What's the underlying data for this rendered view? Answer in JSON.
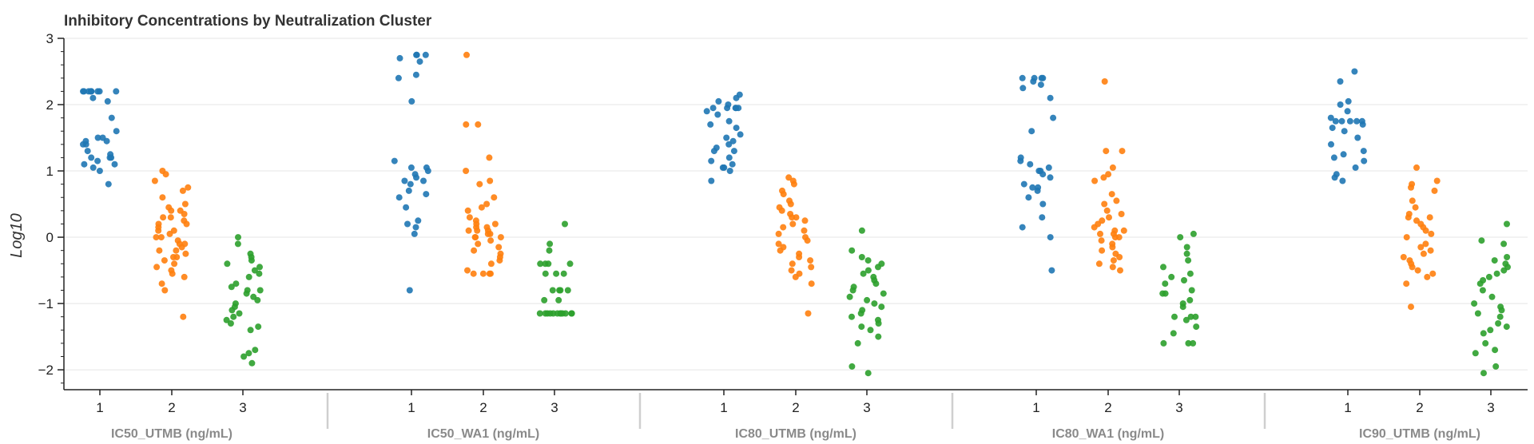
{
  "chart_data": {
    "type": "scatter",
    "title": "Inhibitory Concentrations by Neutralization Cluster",
    "xlabel": "",
    "ylabel": "Log10",
    "ylim": [
      -2.3,
      3.0
    ],
    "yticks": [
      3,
      2,
      1,
      0,
      -1,
      -2
    ],
    "ytick_labels": [
      "3",
      "2",
      "1",
      "0",
      "−1",
      "−2"
    ],
    "categories": [
      "1",
      "2",
      "3"
    ],
    "groups": [
      "IC50_UTMB (ng/mL)",
      "IC50_WA1 (ng/mL)",
      "IC80_UTMB (ng/mL)",
      "IC80_WA1 (ng/mL)",
      "IC90_UTMB (ng/mL)"
    ],
    "grid": "horizontal",
    "colors": {
      "1": "#1f77b4",
      "2": "#ff7f0e",
      "3": "#2ca02c"
    },
    "series": [
      {
        "group": "IC50_UTMB (ng/mL)",
        "clusters": [
          {
            "cluster": "1",
            "values": [
              2.2,
              2.2,
              2.2,
              2.2,
              2.2,
              2.2,
              2.2,
              2.2,
              2.2,
              2.1,
              2.05,
              1.8,
              1.6,
              1.5,
              1.5,
              1.45,
              1.45,
              1.4,
              1.4,
              1.3,
              1.25,
              1.2,
              1.2,
              1.2,
              1.15,
              1.1,
              1.1,
              1.05,
              1.0,
              0.8
            ]
          },
          {
            "cluster": "2",
            "values": [
              1.0,
              0.95,
              0.85,
              0.75,
              0.7,
              0.6,
              0.5,
              0.45,
              0.4,
              0.4,
              0.35,
              0.3,
              0.3,
              0.25,
              0.2,
              0.2,
              0.15,
              0.1,
              0.1,
              0.05,
              0.0,
              0.0,
              -0.05,
              -0.1,
              -0.1,
              -0.15,
              -0.2,
              -0.2,
              -0.25,
              -0.3,
              -0.3,
              -0.35,
              -0.4,
              -0.45,
              -0.5,
              -0.55,
              -0.6,
              -0.7,
              -0.8,
              -1.2
            ]
          },
          {
            "cluster": "3",
            "values": [
              0.0,
              -0.1,
              -0.25,
              -0.3,
              -0.35,
              -0.4,
              -0.45,
              -0.5,
              -0.55,
              -0.6,
              -0.7,
              -0.75,
              -0.8,
              -0.8,
              -0.85,
              -0.9,
              -0.95,
              -1.0,
              -1.05,
              -1.1,
              -1.15,
              -1.2,
              -1.25,
              -1.3,
              -1.35,
              -1.4,
              -1.7,
              -1.75,
              -1.8,
              -1.9
            ]
          }
        ]
      },
      {
        "group": "IC50_WA1 (ng/mL)",
        "clusters": [
          {
            "cluster": "1",
            "values": [
              2.75,
              2.75,
              2.75,
              2.7,
              2.65,
              2.45,
              2.4,
              2.05,
              1.15,
              1.05,
              1.05,
              1.0,
              0.95,
              0.9,
              0.85,
              0.85,
              0.8,
              0.7,
              0.65,
              0.6,
              0.45,
              0.25,
              0.2,
              0.15,
              0.05,
              -0.8
            ]
          },
          {
            "cluster": "2",
            "values": [
              2.75,
              1.7,
              1.7,
              1.2,
              1.0,
              0.85,
              0.8,
              0.6,
              0.5,
              0.45,
              0.4,
              0.3,
              0.25,
              0.2,
              0.2,
              0.15,
              0.15,
              0.1,
              0.1,
              0.1,
              0.05,
              0.05,
              0.0,
              0.0,
              0.0,
              -0.05,
              -0.1,
              -0.15,
              -0.2,
              -0.25,
              -0.3,
              -0.35,
              -0.4,
              -0.5,
              -0.55,
              -0.55,
              -0.55,
              -0.55
            ]
          },
          {
            "cluster": "3",
            "values": [
              0.2,
              -0.1,
              -0.2,
              -0.4,
              -0.4,
              -0.4,
              -0.4,
              -0.55,
              -0.55,
              -0.55,
              -0.8,
              -0.8,
              -0.8,
              -0.8,
              -0.95,
              -0.95,
              -1.15,
              -1.15,
              -1.15,
              -1.15,
              -1.15,
              -1.15,
              -1.15,
              -1.15,
              -1.15,
              -1.15,
              -1.15,
              -1.15
            ]
          }
        ]
      },
      {
        "group": "IC80_UTMB (ng/mL)",
        "clusters": [
          {
            "cluster": "1",
            "values": [
              2.15,
              2.1,
              2.05,
              2.0,
              1.95,
              1.95,
              1.95,
              1.95,
              1.95,
              1.9,
              1.85,
              1.75,
              1.7,
              1.65,
              1.55,
              1.5,
              1.45,
              1.4,
              1.35,
              1.3,
              1.3,
              1.2,
              1.15,
              1.1,
              1.05,
              1.05,
              1.0,
              0.85
            ]
          },
          {
            "cluster": "2",
            "values": [
              0.9,
              0.85,
              0.8,
              0.7,
              0.65,
              0.55,
              0.5,
              0.45,
              0.4,
              0.35,
              0.3,
              0.3,
              0.25,
              0.2,
              0.15,
              0.1,
              0.05,
              0.0,
              -0.05,
              -0.1,
              -0.15,
              -0.2,
              -0.25,
              -0.3,
              -0.35,
              -0.4,
              -0.45,
              -0.5,
              -0.55,
              -0.6,
              -0.7,
              -1.15
            ]
          },
          {
            "cluster": "3",
            "values": [
              0.1,
              -0.2,
              -0.3,
              -0.35,
              -0.4,
              -0.45,
              -0.5,
              -0.55,
              -0.6,
              -0.65,
              -0.7,
              -0.75,
              -0.8,
              -0.85,
              -0.9,
              -0.95,
              -1.0,
              -1.05,
              -1.1,
              -1.15,
              -1.2,
              -1.25,
              -1.3,
              -1.35,
              -1.4,
              -1.5,
              -1.6,
              -1.95,
              -2.05
            ]
          }
        ]
      },
      {
        "group": "IC80_WA1 (ng/mL)",
        "clusters": [
          {
            "cluster": "1",
            "values": [
              2.4,
              2.4,
              2.4,
              2.4,
              2.35,
              2.3,
              2.25,
              2.1,
              1.8,
              1.6,
              1.2,
              1.15,
              1.1,
              1.05,
              1.0,
              1.0,
              0.95,
              0.9,
              0.8,
              0.75,
              0.75,
              0.7,
              0.6,
              0.5,
              0.3,
              0.15,
              0.0,
              -0.5
            ]
          },
          {
            "cluster": "2",
            "values": [
              2.35,
              1.3,
              1.3,
              1.05,
              0.95,
              0.9,
              0.85,
              0.65,
              0.55,
              0.5,
              0.4,
              0.35,
              0.3,
              0.25,
              0.2,
              0.15,
              0.1,
              0.1,
              0.05,
              0.05,
              0.0,
              0.0,
              -0.05,
              -0.1,
              -0.15,
              -0.2,
              -0.25,
              -0.3,
              -0.35,
              -0.4,
              -0.45,
              -0.5
            ]
          },
          {
            "cluster": "3",
            "values": [
              0.05,
              0.0,
              -0.15,
              -0.25,
              -0.35,
              -0.45,
              -0.55,
              -0.6,
              -0.65,
              -0.7,
              -0.8,
              -0.85,
              -0.85,
              -0.95,
              -1.0,
              -1.05,
              -1.2,
              -1.2,
              -1.2,
              -1.25,
              -1.35,
              -1.45,
              -1.6,
              -1.6,
              -1.6
            ]
          }
        ]
      },
      {
        "group": "IC90_UTMB (ng/mL)",
        "clusters": [
          {
            "cluster": "1",
            "values": [
              2.5,
              2.35,
              2.05,
              2.0,
              1.9,
              1.8,
              1.75,
              1.75,
              1.75,
              1.75,
              1.75,
              1.7,
              1.65,
              1.6,
              1.5,
              1.4,
              1.3,
              1.25,
              1.2,
              1.15,
              1.05,
              0.95,
              0.9,
              0.85
            ]
          },
          {
            "cluster": "2",
            "values": [
              1.05,
              0.85,
              0.8,
              0.75,
              0.7,
              0.55,
              0.45,
              0.35,
              0.3,
              0.3,
              0.25,
              0.2,
              0.15,
              0.1,
              0.05,
              0.0,
              -0.1,
              -0.15,
              -0.2,
              -0.25,
              -0.3,
              -0.35,
              -0.4,
              -0.45,
              -0.5,
              -0.55,
              -0.6,
              -0.7,
              -1.05
            ]
          },
          {
            "cluster": "3",
            "values": [
              0.2,
              -0.05,
              -0.1,
              -0.3,
              -0.35,
              -0.4,
              -0.45,
              -0.5,
              -0.55,
              -0.6,
              -0.65,
              -0.7,
              -0.8,
              -0.9,
              -1.0,
              -1.05,
              -1.1,
              -1.15,
              -1.2,
              -1.3,
              -1.35,
              -1.4,
              -1.45,
              -1.6,
              -1.7,
              -1.75,
              -1.95,
              -2.05
            ]
          }
        ]
      }
    ]
  }
}
